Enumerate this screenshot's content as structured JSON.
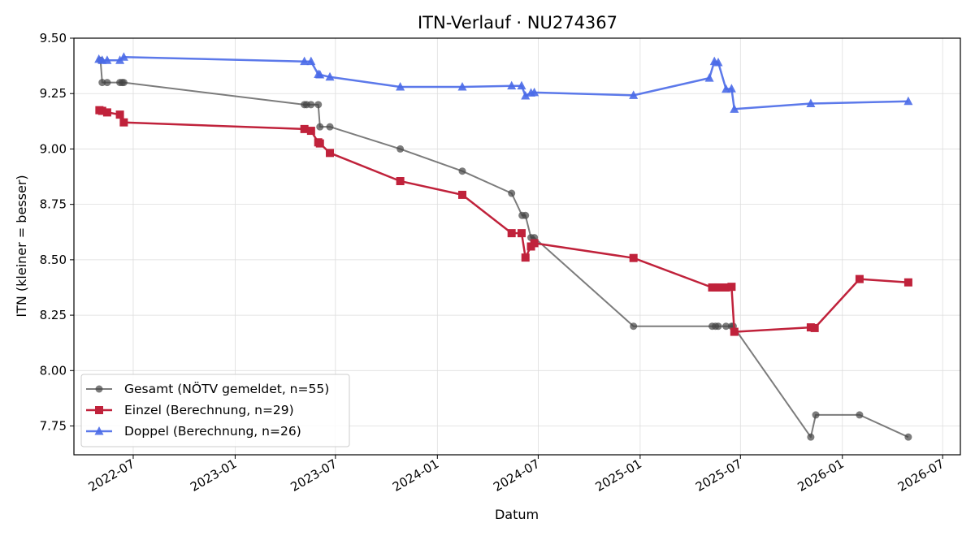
{
  "chart_data": {
    "type": "line",
    "title": "ITN-Verlauf · NU274367",
    "xlabel": "Datum",
    "ylabel": "ITN  (kleiner = besser)",
    "x_type": "date",
    "xlim": [
      "2022-03-16",
      "2026-08-02"
    ],
    "ylim": [
      7.62,
      9.5
    ],
    "x_ticks": [
      "2022-07-01",
      "2023-01-01",
      "2023-07-01",
      "2024-01-01",
      "2024-07-01",
      "2025-01-01",
      "2025-07-01",
      "2026-01-01",
      "2026-07-01"
    ],
    "x_tick_labels": [
      "2022-07",
      "2023-01",
      "2023-07",
      "2024-01",
      "2024-07",
      "2025-01",
      "2025-07",
      "2026-01",
      "2026-07"
    ],
    "y_ticks": [
      7.75,
      8.0,
      8.25,
      8.5,
      8.75,
      9.0,
      9.25,
      9.5
    ],
    "y_tick_labels": [
      "7.75",
      "8.00",
      "8.25",
      "8.50",
      "8.75",
      "9.00",
      "9.25",
      "9.50"
    ],
    "grid": true,
    "legend_position": "lower-left",
    "series": [
      {
        "name": "Gesamt (NÖTV gemeldet, n=55)",
        "color": "#444444",
        "marker": "circle",
        "points": [
          [
            "2022-05-03",
            9.4
          ],
          [
            "2022-05-06",
            9.3
          ],
          [
            "2022-05-15",
            9.3
          ],
          [
            "2022-06-07",
            9.3
          ],
          [
            "2022-06-11",
            9.3
          ],
          [
            "2022-06-14",
            9.3
          ],
          [
            "2023-05-06",
            9.2
          ],
          [
            "2023-05-10",
            9.2
          ],
          [
            "2023-05-18",
            9.2
          ],
          [
            "2023-05-31",
            9.2
          ],
          [
            "2023-06-03",
            9.1
          ],
          [
            "2023-06-21",
            9.1
          ],
          [
            "2023-10-26",
            9.0
          ],
          [
            "2024-02-15",
            8.9
          ],
          [
            "2024-05-14",
            8.8
          ],
          [
            "2024-06-02",
            8.7
          ],
          [
            "2024-06-08",
            8.7
          ],
          [
            "2024-06-18",
            8.6
          ],
          [
            "2024-06-24",
            8.6
          ],
          [
            "2024-12-20",
            8.2
          ],
          [
            "2025-05-11",
            8.2
          ],
          [
            "2025-05-17",
            8.2
          ],
          [
            "2025-05-22",
            8.2
          ],
          [
            "2025-06-05",
            8.2
          ],
          [
            "2025-06-15",
            8.2
          ],
          [
            "2025-06-18",
            8.2
          ],
          [
            "2025-11-05",
            7.7
          ],
          [
            "2025-11-14",
            7.8
          ],
          [
            "2026-02-01",
            7.8
          ],
          [
            "2026-04-30",
            7.7
          ]
        ]
      },
      {
        "name": "Einzel (Berechnung, n=29)",
        "color": "#c0223b",
        "marker": "square",
        "points": [
          [
            "2022-05-01",
            9.175
          ],
          [
            "2022-05-06",
            9.172
          ],
          [
            "2022-05-15",
            9.165
          ],
          [
            "2022-06-07",
            9.155
          ],
          [
            "2022-06-14",
            9.12
          ],
          [
            "2023-05-06",
            9.09
          ],
          [
            "2023-05-18",
            9.082
          ],
          [
            "2023-05-31",
            9.03
          ],
          [
            "2023-06-03",
            9.025
          ],
          [
            "2023-06-21",
            8.982
          ],
          [
            "2023-10-26",
            8.855
          ],
          [
            "2024-02-15",
            8.793
          ],
          [
            "2024-05-14",
            8.62
          ],
          [
            "2024-06-01",
            8.62
          ],
          [
            "2024-06-08",
            8.51
          ],
          [
            "2024-06-18",
            8.56
          ],
          [
            "2024-06-24",
            8.575
          ],
          [
            "2024-12-20",
            8.508
          ],
          [
            "2025-05-11",
            8.375
          ],
          [
            "2025-05-17",
            8.375
          ],
          [
            "2025-05-22",
            8.375
          ],
          [
            "2025-06-05",
            8.375
          ],
          [
            "2025-06-15",
            8.378
          ],
          [
            "2025-06-20",
            8.175
          ],
          [
            "2025-11-05",
            8.195
          ],
          [
            "2025-11-12",
            8.192
          ],
          [
            "2026-02-01",
            8.413
          ],
          [
            "2026-04-30",
            8.398
          ]
        ]
      },
      {
        "name": "Doppel (Berechnung, n=26)",
        "color": "#4a6ae8",
        "marker": "triangle",
        "points": [
          [
            "2022-04-30",
            9.405
          ],
          [
            "2022-05-06",
            9.4
          ],
          [
            "2022-05-15",
            9.4
          ],
          [
            "2022-06-07",
            9.4
          ],
          [
            "2022-06-14",
            9.415
          ],
          [
            "2023-05-06",
            9.395
          ],
          [
            "2023-05-18",
            9.395
          ],
          [
            "2023-05-31",
            9.337
          ],
          [
            "2023-06-03",
            9.335
          ],
          [
            "2023-06-21",
            9.325
          ],
          [
            "2023-10-26",
            9.28
          ],
          [
            "2024-02-15",
            9.28
          ],
          [
            "2024-05-14",
            9.285
          ],
          [
            "2024-06-01",
            9.285
          ],
          [
            "2024-06-08",
            9.24
          ],
          [
            "2024-06-18",
            9.253
          ],
          [
            "2024-06-24",
            9.255
          ],
          [
            "2024-12-20",
            9.242
          ],
          [
            "2025-05-06",
            9.32
          ],
          [
            "2025-05-15",
            9.395
          ],
          [
            "2025-05-22",
            9.39
          ],
          [
            "2025-06-05",
            9.27
          ],
          [
            "2025-06-15",
            9.272
          ],
          [
            "2025-06-20",
            9.18
          ],
          [
            "2025-11-05",
            9.205
          ],
          [
            "2026-04-30",
            9.215
          ]
        ]
      }
    ]
  }
}
